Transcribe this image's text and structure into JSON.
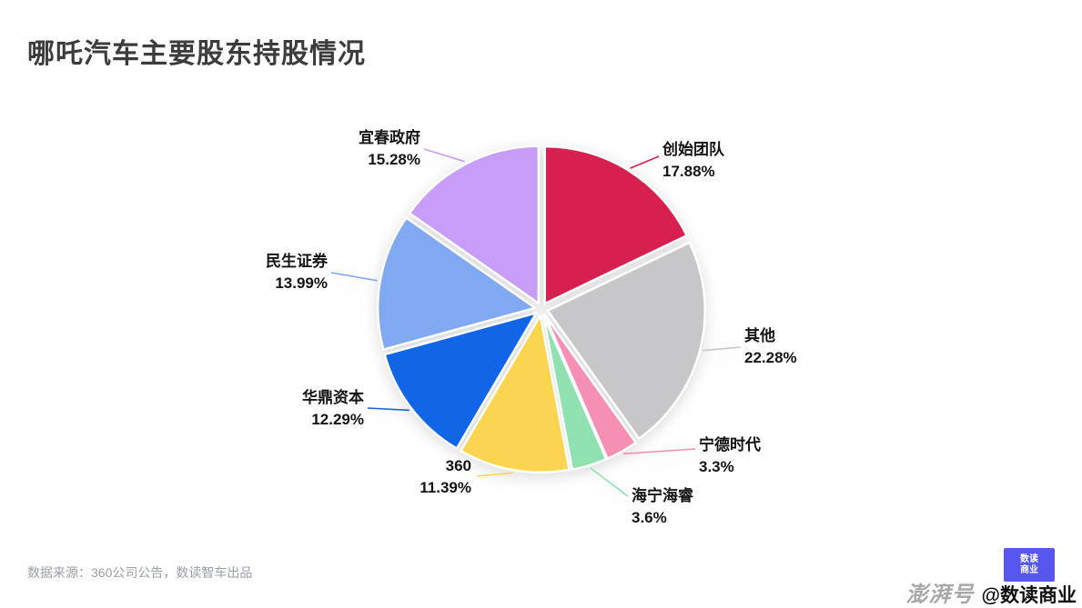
{
  "page": {
    "title": "哪吒汽车主要股东持股情况",
    "source": "数据来源：360公司公告，数读智车出品"
  },
  "watermark": {
    "brand": "澎湃号",
    "handle": "@数读商业",
    "logo_line1": "数读",
    "logo_line2": "商业"
  },
  "chart_data": {
    "type": "pie",
    "title": "哪吒汽车主要股东持股情况",
    "start_angle_deg": 0,
    "direction": "clockwise",
    "donut": false,
    "legend_position": "outside-labels",
    "slices": [
      {
        "label": "创始团队",
        "value": 17.88,
        "pct_label": "17.88%",
        "color": "#d8204e"
      },
      {
        "label": "其他",
        "value": 22.28,
        "pct_label": "22.28%",
        "color": "#c7c7c9"
      },
      {
        "label": "宁德时代",
        "value": 3.3,
        "pct_label": "3.3%",
        "color": "#f590b4"
      },
      {
        "label": "海宁海睿",
        "value": 3.6,
        "pct_label": "3.6%",
        "color": "#8fe2b0"
      },
      {
        "label": "360",
        "value": 11.39,
        "pct_label": "11.39%",
        "color": "#fbd54f"
      },
      {
        "label": "华鼎资本",
        "value": 12.29,
        "pct_label": "12.29%",
        "color": "#1166e8"
      },
      {
        "label": "民生证券",
        "value": 13.99,
        "pct_label": "13.99%",
        "color": "#80a9f1"
      },
      {
        "label": "宜春政府",
        "value": 15.28,
        "pct_label": "15.28%",
        "color": "#c89df7"
      }
    ]
  }
}
